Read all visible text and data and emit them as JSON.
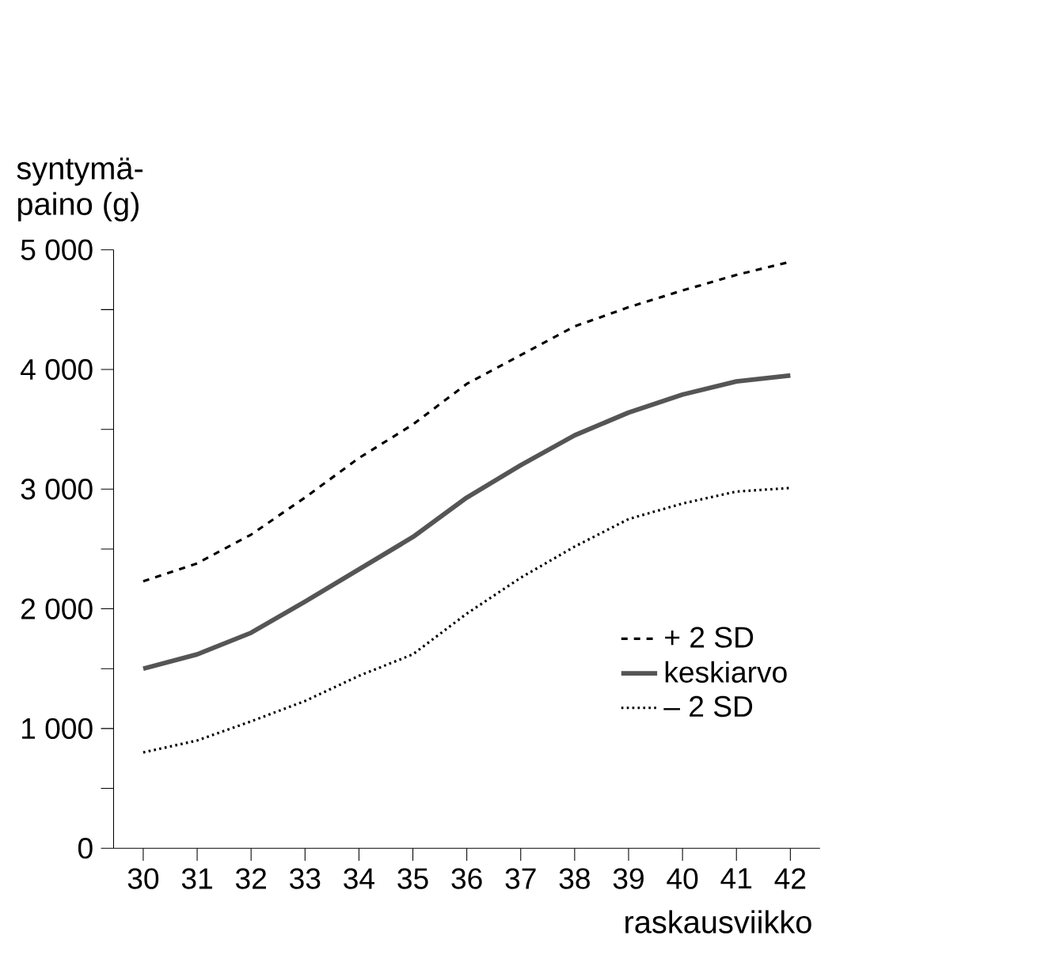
{
  "chart_data": {
    "type": "line",
    "xlabel": "raskausviikko",
    "ylabel": "syntymä-\npaino (g)",
    "x": [
      30,
      31,
      32,
      33,
      34,
      35,
      36,
      37,
      38,
      39,
      40,
      41,
      42
    ],
    "xlim": [
      29.45,
      42.55
    ],
    "xticks": [
      30,
      31,
      32,
      33,
      34,
      35,
      36,
      37,
      38,
      39,
      40,
      41,
      42
    ],
    "ylim": [
      0,
      5000
    ],
    "yticks": [
      0,
      {
        "value": 500,
        "label": null
      },
      {
        "value": 1000,
        "label": "1 000"
      },
      {
        "value": 1500,
        "label": null
      },
      {
        "value": 2000,
        "label": "2 000"
      },
      {
        "value": 2500,
        "label": null
      },
      {
        "value": 3000,
        "label": "3 000"
      },
      {
        "value": 3500,
        "label": null
      },
      {
        "value": 4000,
        "label": "4 000"
      },
      {
        "value": 4500,
        "label": null
      },
      {
        "value": 5000,
        "label": "5 000"
      }
    ],
    "grid": false,
    "legend": "right",
    "marker": "none",
    "series": [
      {
        "name": "+ 2 SD",
        "color": "#000000",
        "line_style": "dashed",
        "values": [
          2230,
          2380,
          2620,
          2930,
          3260,
          3540,
          3880,
          4120,
          4360,
          4520,
          4660,
          4790,
          4900
        ]
      },
      {
        "name": "keskiarvo",
        "color": "#555555",
        "line_style": "solid",
        "values": [
          1500,
          1620,
          1800,
          2060,
          2330,
          2600,
          2930,
          3200,
          3450,
          3640,
          3790,
          3900,
          3950
        ]
      },
      {
        "name": "– 2 SD",
        "color": "#000000",
        "line_style": "dotted",
        "values": [
          800,
          900,
          1060,
          1230,
          1440,
          1620,
          1960,
          2260,
          2520,
          2750,
          2880,
          2980,
          3010
        ]
      }
    ]
  }
}
